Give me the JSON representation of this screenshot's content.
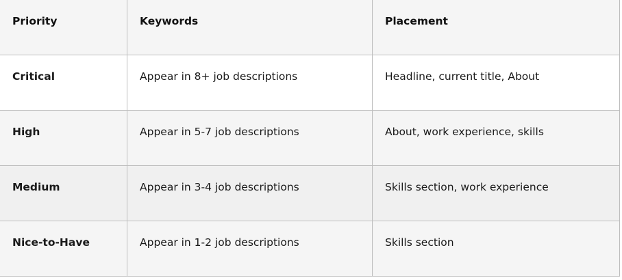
{
  "table": {
    "headers": [
      "Priority",
      "Keywords",
      "Placement"
    ],
    "rows": [
      {
        "priority": "Critical",
        "keywords": "Appear in 8+ job descriptions",
        "placement": "Headline, current title, About",
        "bg": "#ffffff"
      },
      {
        "priority": "High",
        "keywords": "Appear in 5-7 job descriptions",
        "placement": "About, work experience, skills",
        "bg": "#f5f5f5"
      },
      {
        "priority": "Medium",
        "keywords": "Appear in 3-4 job descriptions",
        "placement": "Skills section, work experience",
        "bg": "#f0f0f0"
      },
      {
        "priority": "Nice-to-Have",
        "keywords": "Appear in 1-2 job descriptions",
        "placement": "Skills section",
        "bg": "#f5f5f5"
      }
    ],
    "header_bg": "#f5f5f5",
    "border_color": "#bdbdbd"
  }
}
